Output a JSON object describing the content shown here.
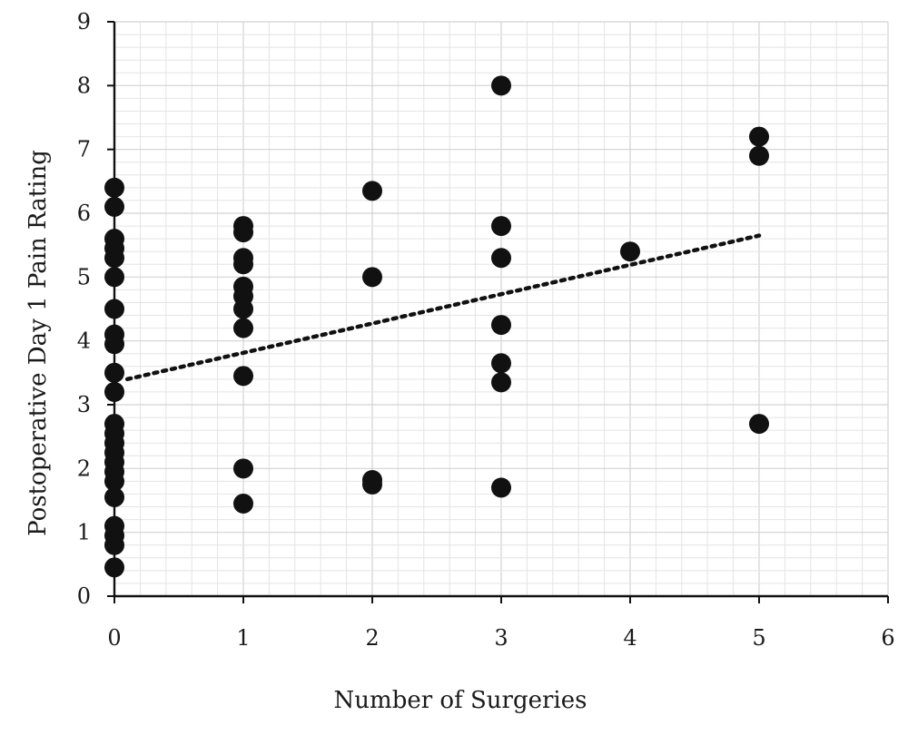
{
  "chart_data": {
    "type": "scatter",
    "title": "",
    "xlabel": "Number of Surgeries",
    "ylabel": "Postoperative Day 1 Pain Rating",
    "xlim": [
      0,
      6
    ],
    "ylim": [
      0,
      9
    ],
    "xticks": [
      0,
      1,
      2,
      3,
      4,
      5,
      6
    ],
    "yticks": [
      0,
      1,
      2,
      3,
      4,
      5,
      6,
      7,
      8,
      9
    ],
    "grid": true,
    "marker_color": "#111111",
    "points": [
      {
        "x": 0,
        "y": 6.4
      },
      {
        "x": 0,
        "y": 6.1
      },
      {
        "x": 0,
        "y": 5.6
      },
      {
        "x": 0,
        "y": 5.45
      },
      {
        "x": 0,
        "y": 5.3
      },
      {
        "x": 0,
        "y": 5.0
      },
      {
        "x": 0,
        "y": 4.5
      },
      {
        "x": 0,
        "y": 4.1
      },
      {
        "x": 0,
        "y": 3.95
      },
      {
        "x": 0,
        "y": 3.5
      },
      {
        "x": 0,
        "y": 3.2
      },
      {
        "x": 0,
        "y": 2.7
      },
      {
        "x": 0,
        "y": 2.55
      },
      {
        "x": 0,
        "y": 2.4
      },
      {
        "x": 0,
        "y": 2.25
      },
      {
        "x": 0,
        "y": 2.1
      },
      {
        "x": 0,
        "y": 1.95
      },
      {
        "x": 0,
        "y": 1.8
      },
      {
        "x": 0,
        "y": 1.55
      },
      {
        "x": 0,
        "y": 1.1
      },
      {
        "x": 0,
        "y": 0.95
      },
      {
        "x": 0,
        "y": 0.8
      },
      {
        "x": 0,
        "y": 0.45
      },
      {
        "x": 1,
        "y": 5.8
      },
      {
        "x": 1,
        "y": 5.7
      },
      {
        "x": 1,
        "y": 5.3
      },
      {
        "x": 1,
        "y": 5.2
      },
      {
        "x": 1,
        "y": 4.85
      },
      {
        "x": 1,
        "y": 4.7
      },
      {
        "x": 1,
        "y": 4.5
      },
      {
        "x": 1,
        "y": 4.2
      },
      {
        "x": 1,
        "y": 3.45
      },
      {
        "x": 1,
        "y": 2.0
      },
      {
        "x": 1,
        "y": 1.45
      },
      {
        "x": 2,
        "y": 6.35
      },
      {
        "x": 2,
        "y": 5.0
      },
      {
        "x": 2,
        "y": 1.82
      },
      {
        "x": 2,
        "y": 1.75
      },
      {
        "x": 3,
        "y": 8.0
      },
      {
        "x": 3,
        "y": 5.8
      },
      {
        "x": 3,
        "y": 5.3
      },
      {
        "x": 3,
        "y": 4.25
      },
      {
        "x": 3,
        "y": 3.65
      },
      {
        "x": 3,
        "y": 3.35
      },
      {
        "x": 3,
        "y": 1.7
      },
      {
        "x": 4,
        "y": 5.4
      },
      {
        "x": 5,
        "y": 7.2
      },
      {
        "x": 5,
        "y": 6.9
      },
      {
        "x": 5,
        "y": 2.7
      }
    ],
    "trendline": {
      "style": "dotted",
      "x_start": 0.1,
      "y_start": 3.4,
      "x_end": 5,
      "y_end": 5.65
    }
  }
}
